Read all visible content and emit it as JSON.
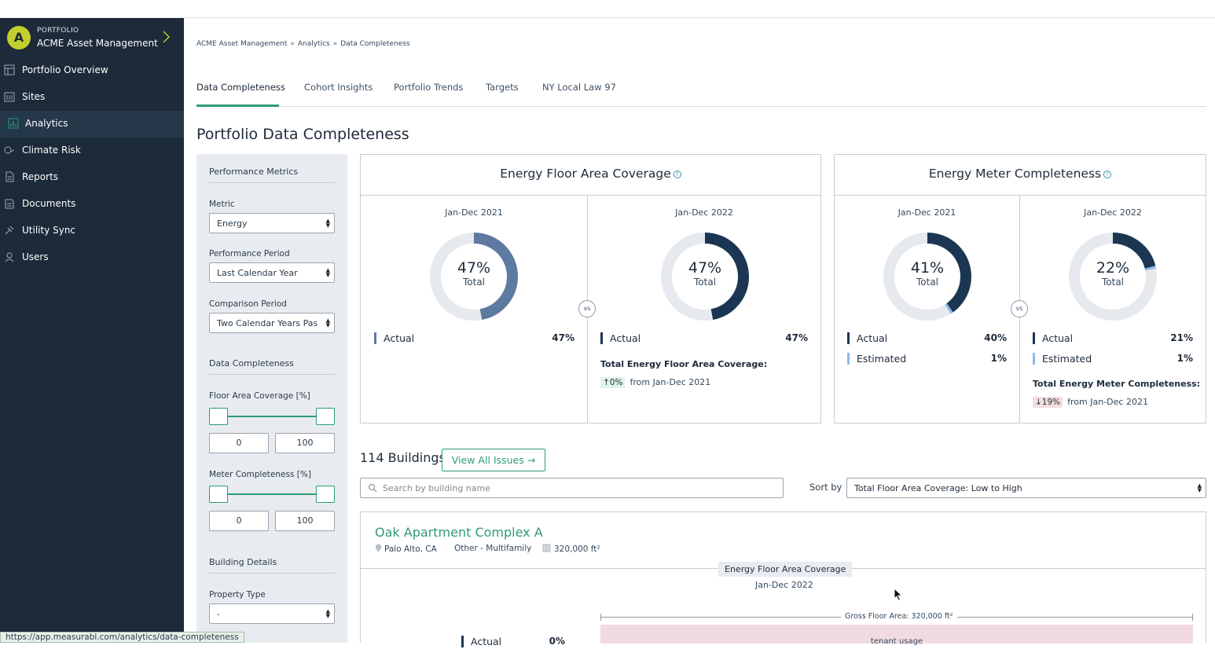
{
  "sidebar": {
    "org_label": "PORTFOLIO",
    "org_name": "ACME Asset Management",
    "avatar_letter": "A",
    "items": [
      {
        "label": "Portfolio Overview",
        "icon": "overview-icon"
      },
      {
        "label": "Sites",
        "icon": "building-icon"
      },
      {
        "label": "Analytics",
        "icon": "chart-icon",
        "active": true
      },
      {
        "label": "Climate Risk",
        "icon": "climate-icon"
      },
      {
        "label": "Reports",
        "icon": "report-icon"
      },
      {
        "label": "Documents",
        "icon": "document-icon"
      },
      {
        "label": "Utility Sync",
        "icon": "sync-icon"
      },
      {
        "label": "Users",
        "icon": "users-icon"
      }
    ]
  },
  "breadcrumb": [
    "ACME Asset Management",
    "Analytics",
    "Data Completeness"
  ],
  "breadcrumb_separator": "»",
  "tabs": [
    "Data Completeness",
    "Cohort Insights",
    "Portfolio Trends",
    "Targets",
    "NY Local Law 97"
  ],
  "page_title": "Portfolio Data Completeness",
  "filters": {
    "performance_metrics": "Performance Metrics",
    "metric_label": "Metric",
    "metric_value": "Energy",
    "period_label": "Performance Period",
    "period_value": "Last Calendar Year",
    "comparison_label": "Comparison Period",
    "comparison_value": "Two Calendar Years Pas",
    "data_completeness": "Data Completeness",
    "floor_area_label": "Floor Area Coverage [%]",
    "floor_area_min": "0",
    "floor_area_max": "100",
    "meter_label": "Meter Completeness [%]",
    "meter_min": "0",
    "meter_max": "100",
    "building_details": "Building Details",
    "property_type_label": "Property Type",
    "property_type_value": "-"
  },
  "cards": {
    "floor_area": {
      "title": "Energy Floor Area Coverage",
      "help": "?",
      "left": {
        "period": "Jan-Dec 2021",
        "pct": "47%",
        "total": "Total",
        "actual_label": "Actual",
        "actual_value": "47%",
        "actual_fraction": 0.47
      },
      "right": {
        "period": "Jan-Dec 2022",
        "pct": "47%",
        "total": "Total",
        "actual_label": "Actual",
        "actual_value": "47%",
        "actual_fraction": 0.47,
        "total_label": "Total Energy Floor Area Coverage:",
        "change": "↑0%",
        "change_from": "from Jan-Dec 2021"
      },
      "vs": "vs"
    },
    "meter": {
      "title": "Energy Meter Completeness",
      "help": "?",
      "left": {
        "period": "Jan-Dec 2021",
        "pct": "41%",
        "total": "Total",
        "actual_label": "Actual",
        "actual_value": "40%",
        "estimated_label": "Estimated",
        "estimated_value": "1%",
        "actual_fraction": 0.4,
        "estimated_fraction": 0.01
      },
      "right": {
        "period": "Jan-Dec 2022",
        "pct": "22%",
        "total": "Total",
        "actual_label": "Actual",
        "actual_value": "21%",
        "estimated_label": "Estimated",
        "estimated_value": "1%",
        "actual_fraction": 0.21,
        "estimated_fraction": 0.01,
        "total_label": "Total Energy Meter Completeness:",
        "change": "↓19%",
        "change_from": "from Jan-Dec 2021"
      },
      "vs": "vs"
    }
  },
  "colors": {
    "actual_light": "#5f7aa0",
    "actual_dark": "#1b3652",
    "estimated": "#8fb8e6",
    "ring_bg": "#e6eaee",
    "accent": "#2e9c72"
  },
  "buildings": {
    "count": "114 Buildings",
    "view_issues": "View All Issues →",
    "search_placeholder": "Search by building name",
    "sort_label": "Sort by",
    "sort_value": "Total Floor Area Coverage: Low to High",
    "first": {
      "name": "Oak Apartment Complex A",
      "location": "Palo Alto, CA",
      "type": "Other - Multifamily",
      "area": "320,000 ft²",
      "chip": "Energy Floor Area Coverage",
      "period": "Jan-Dec 2022",
      "gfa": "Gross Floor Area: 320,000 ft²",
      "actual_label": "Actual",
      "actual_value": "0%",
      "tenant": "tenant usage"
    }
  },
  "status_url": "https://app.measurabl.com/analytics/data-completeness"
}
